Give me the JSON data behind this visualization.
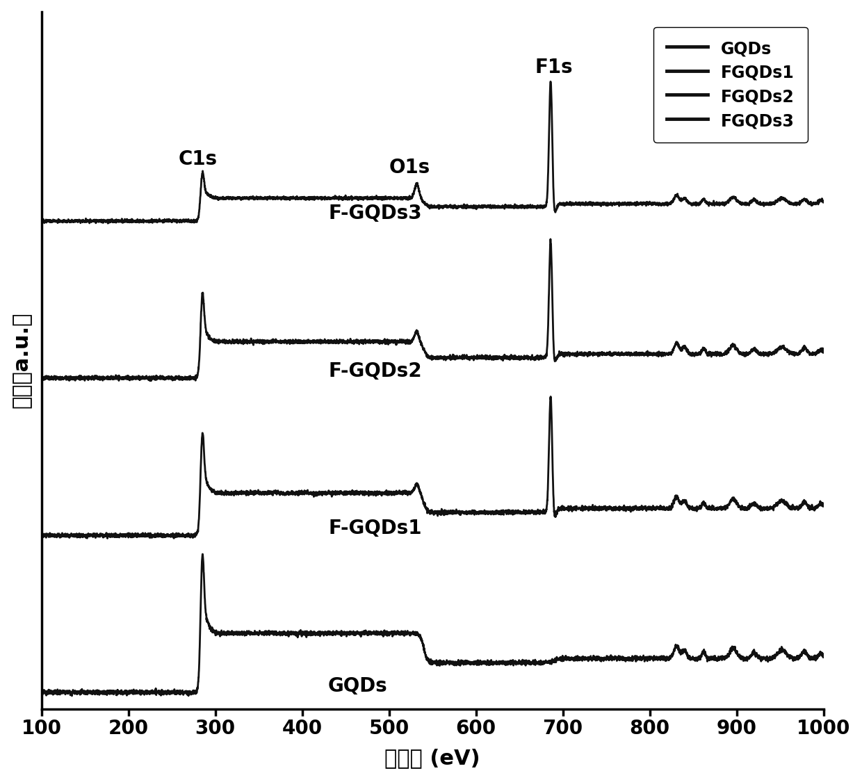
{
  "xlabel": "结合能 (eV)",
  "ylabel": "强度（a.u.）",
  "xlim": [
    100,
    1000
  ],
  "x_ticks": [
    100,
    200,
    300,
    400,
    500,
    600,
    700,
    800,
    900,
    1000
  ],
  "legend_labels": [
    "GQDs",
    "FGQDs1",
    "FGQDs2",
    "FGQDs3"
  ],
  "curve_labels": [
    "GQDs",
    "F-GQDs1",
    "F-GQDs2",
    "F-GQDs3"
  ],
  "offsets": [
    0,
    1.8,
    3.6,
    5.4
  ],
  "line_color": "#111111",
  "line_width": 2.0,
  "background_color": "#ffffff",
  "label_fontsize": 22,
  "tick_fontsize": 20,
  "legend_fontsize": 17,
  "annotation_fontsize": 20,
  "curve_label_fontsize": 20
}
